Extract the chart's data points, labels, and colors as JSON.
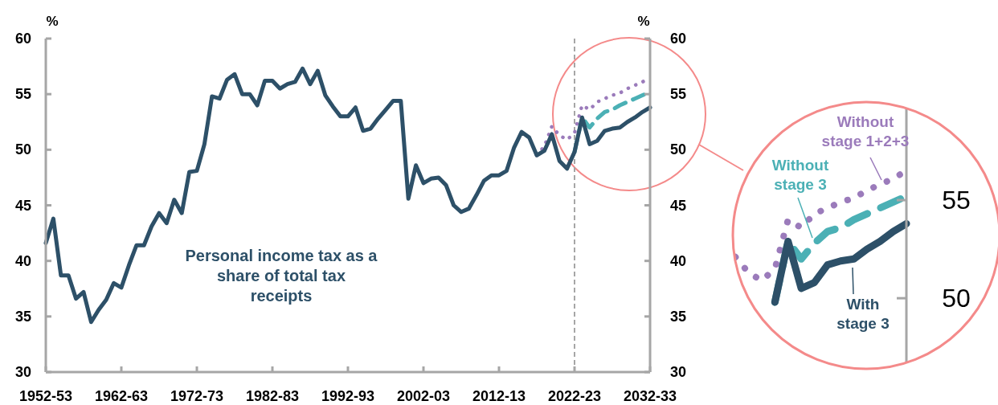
{
  "chart_data": [
    {
      "type": "line",
      "ylabel": "%",
      "y2label": "%",
      "categories": [
        "1952-53",
        null,
        null,
        null,
        null,
        null,
        null,
        null,
        null,
        null,
        "1962-63",
        null,
        null,
        null,
        null,
        null,
        null,
        null,
        null,
        null,
        "1972-73",
        null,
        null,
        null,
        null,
        null,
        null,
        null,
        null,
        null,
        "1982-83",
        null,
        null,
        null,
        null,
        null,
        null,
        null,
        null,
        null,
        "1992-93",
        null,
        null,
        null,
        null,
        null,
        null,
        null,
        null,
        null,
        "2002-03",
        null,
        null,
        null,
        null,
        null,
        null,
        null,
        null,
        null,
        "2012-13",
        null,
        null,
        null,
        null,
        null,
        null,
        null,
        null,
        null,
        "2022-23",
        null,
        null,
        null,
        null,
        null,
        null,
        null,
        null,
        null,
        "2032-33"
      ],
      "ylim": [
        30,
        60
      ],
      "yticks": [
        30,
        35,
        40,
        45,
        50,
        55,
        60
      ],
      "y2lim": [
        30,
        60
      ],
      "y2ticks": [
        30,
        35,
        40,
        45,
        50,
        55,
        60
      ],
      "grid": false,
      "annotations": [
        "Personal income tax as a share of total tax receipts"
      ],
      "ref_lines": [
        {
          "axis": "x",
          "value": "2022-23",
          "color": "#a6a6a6",
          "line_style": "dashed"
        }
      ],
      "series": [
        {
          "color": "#2d5068",
          "line_style": "solid",
          "values": [
            41.6,
            43.8,
            38.7,
            38.7,
            36.6,
            37.2,
            34.5,
            35.6,
            36.5,
            38.0,
            37.6,
            39.6,
            41.4,
            41.4,
            43.1,
            44.3,
            43.4,
            45.5,
            44.3,
            48.0,
            48.1,
            50.5,
            54.8,
            54.6,
            56.3,
            56.8,
            55.0,
            55.0,
            54.0,
            56.2,
            56.2,
            55.5,
            55.9,
            56.1,
            57.3,
            55.9,
            57.1,
            54.9,
            53.9,
            53.0,
            53.0,
            53.8,
            51.7,
            51.9,
            52.8,
            53.6,
            54.4,
            54.4,
            45.6,
            48.6,
            47.0,
            47.4,
            47.5,
            46.8,
            45.0,
            44.4,
            44.7,
            45.9,
            47.2,
            47.7,
            47.7,
            48.1,
            50.2,
            51.6,
            51.1,
            49.5,
            49.9,
            51.4,
            49.0,
            48.3,
            49.8,
            52.9,
            50.5,
            50.8,
            51.7,
            51.9,
            52.0,
            52.5,
            52.9,
            53.4,
            53.8
          ]
        },
        {
          "color": "#4bb0b5",
          "line_style": "dashed",
          "values": [
            null,
            null,
            null,
            null,
            null,
            null,
            null,
            null,
            null,
            null,
            null,
            null,
            null,
            null,
            null,
            null,
            null,
            null,
            null,
            null,
            null,
            null,
            null,
            null,
            null,
            null,
            null,
            null,
            null,
            null,
            null,
            null,
            null,
            null,
            null,
            null,
            null,
            null,
            null,
            null,
            null,
            null,
            null,
            null,
            null,
            null,
            null,
            null,
            null,
            null,
            null,
            null,
            null,
            null,
            null,
            null,
            null,
            null,
            null,
            null,
            null,
            null,
            null,
            null,
            null,
            null,
            null,
            null,
            null,
            null,
            49.8,
            52.9,
            52.0,
            52.8,
            53.4,
            53.6,
            54.0,
            54.3,
            54.6,
            54.9,
            55.2
          ]
        },
        {
          "color": "#9b7bbb",
          "line_style": "dotted",
          "values": [
            null,
            null,
            null,
            null,
            null,
            null,
            null,
            null,
            null,
            null,
            null,
            null,
            null,
            null,
            null,
            null,
            null,
            null,
            null,
            null,
            null,
            null,
            null,
            null,
            null,
            null,
            null,
            null,
            null,
            null,
            null,
            null,
            null,
            null,
            null,
            null,
            null,
            null,
            null,
            null,
            null,
            null,
            null,
            null,
            null,
            null,
            null,
            null,
            null,
            null,
            null,
            null,
            null,
            null,
            null,
            null,
            null,
            null,
            null,
            null,
            null,
            null,
            null,
            null,
            null,
            49.5,
            50.3,
            52.1,
            51.3,
            50.9,
            51.5,
            54.0,
            53.6,
            54.3,
            54.6,
            54.9,
            55.1,
            55.5,
            55.8,
            56.1,
            56.5
          ]
        }
      ]
    },
    {
      "type": "line",
      "categories": [
        null,
        null,
        null,
        null,
        null,
        null,
        null,
        null,
        null,
        null,
        null,
        null,
        null,
        null
      ],
      "ylim": [
        46.4,
        60
      ],
      "yticks": [
        50,
        55
      ],
      "tick_labels": "y",
      "grid": false,
      "series": [
        {
          "name": "With stage 3",
          "color": "#2d5068",
          "line_style": "solid",
          "values": [
            null,
            null,
            null,
            49.8,
            52.9,
            50.5,
            50.8,
            51.7,
            51.9,
            52.0,
            52.5,
            52.9,
            53.4,
            53.8
          ]
        },
        {
          "name": "Without stage 3",
          "color": "#4bb0b5",
          "line_style": "dashed",
          "values": [
            null,
            null,
            null,
            49.8,
            52.9,
            52.0,
            52.8,
            53.4,
            53.6,
            54.0,
            54.3,
            54.6,
            54.9,
            55.2
          ]
        },
        {
          "name": "Without stage 1+2+3",
          "color": "#9b7bbb",
          "line_style": "dotted",
          "values": [
            52.1,
            51.3,
            50.9,
            51.5,
            54.0,
            53.6,
            54.3,
            54.6,
            54.9,
            55.1,
            55.5,
            55.8,
            56.1,
            56.5
          ]
        }
      ]
    }
  ]
}
